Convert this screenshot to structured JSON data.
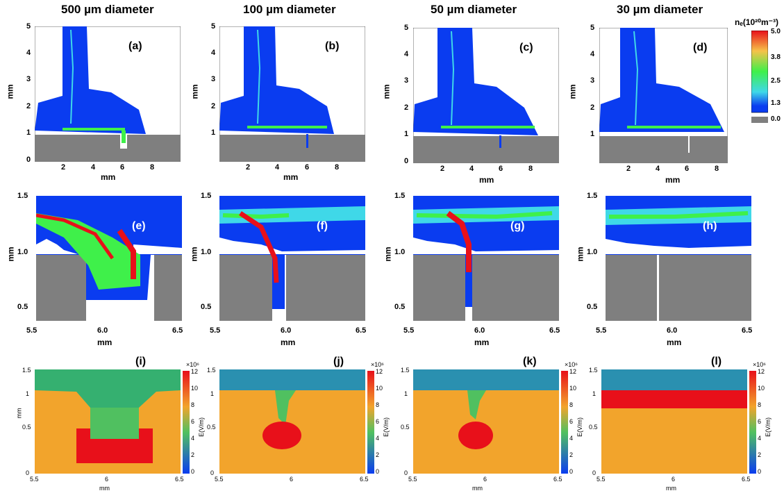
{
  "columns": [
    {
      "title": "500 µm diameter",
      "top_letter": "(a)",
      "mid_letter": "(e)",
      "bot_letter": "(i)"
    },
    {
      "title": "100 µm diameter",
      "top_letter": "(b)",
      "mid_letter": "(f)",
      "bot_letter": "(j)"
    },
    {
      "title": "50 µm diameter",
      "top_letter": "(c)",
      "mid_letter": "(g)",
      "bot_letter": "(k)"
    },
    {
      "title": "30 µm diameter",
      "top_letter": "(d)",
      "mid_letter": "(h)",
      "bot_letter": "(l)"
    }
  ],
  "row1": {
    "ylabel": "mm",
    "xlabel": "mm",
    "yticks": [
      "5",
      "4",
      "3",
      "2",
      "1",
      "0"
    ],
    "xticks": [
      "2",
      "4",
      "6",
      "8"
    ]
  },
  "row2": {
    "ylabel": "mm",
    "xlabel": "mm",
    "yticks": [
      "1.5",
      "1.0",
      "0.5"
    ],
    "xticks": [
      "5.5",
      "6.0",
      "6.5"
    ]
  },
  "row3": {
    "ylabel": "mm",
    "xlabel": "mm",
    "yticks": [
      "1.5",
      "1",
      "0.5",
      "0"
    ],
    "xticks": [
      "5.5",
      "6",
      "6.5"
    ],
    "cb_label": "E(V/m)",
    "cb_exp": "×10⁶",
    "cb_ticks": [
      "12",
      "10",
      "8",
      "6",
      "4",
      "2",
      "0"
    ]
  },
  "density_colorbar": {
    "title": "nₑ(10²⁰m⁻³)",
    "ticks": [
      "5.0",
      "3.8",
      "2.5",
      "1.3",
      "0.0"
    ]
  },
  "colors": {
    "blue": "#0a3cf0",
    "grey": "#7f7f7f",
    "green": "#3ff04a",
    "red": "#e8101a",
    "orange": "#f2a42c",
    "yellow": "#f6c24a"
  }
}
